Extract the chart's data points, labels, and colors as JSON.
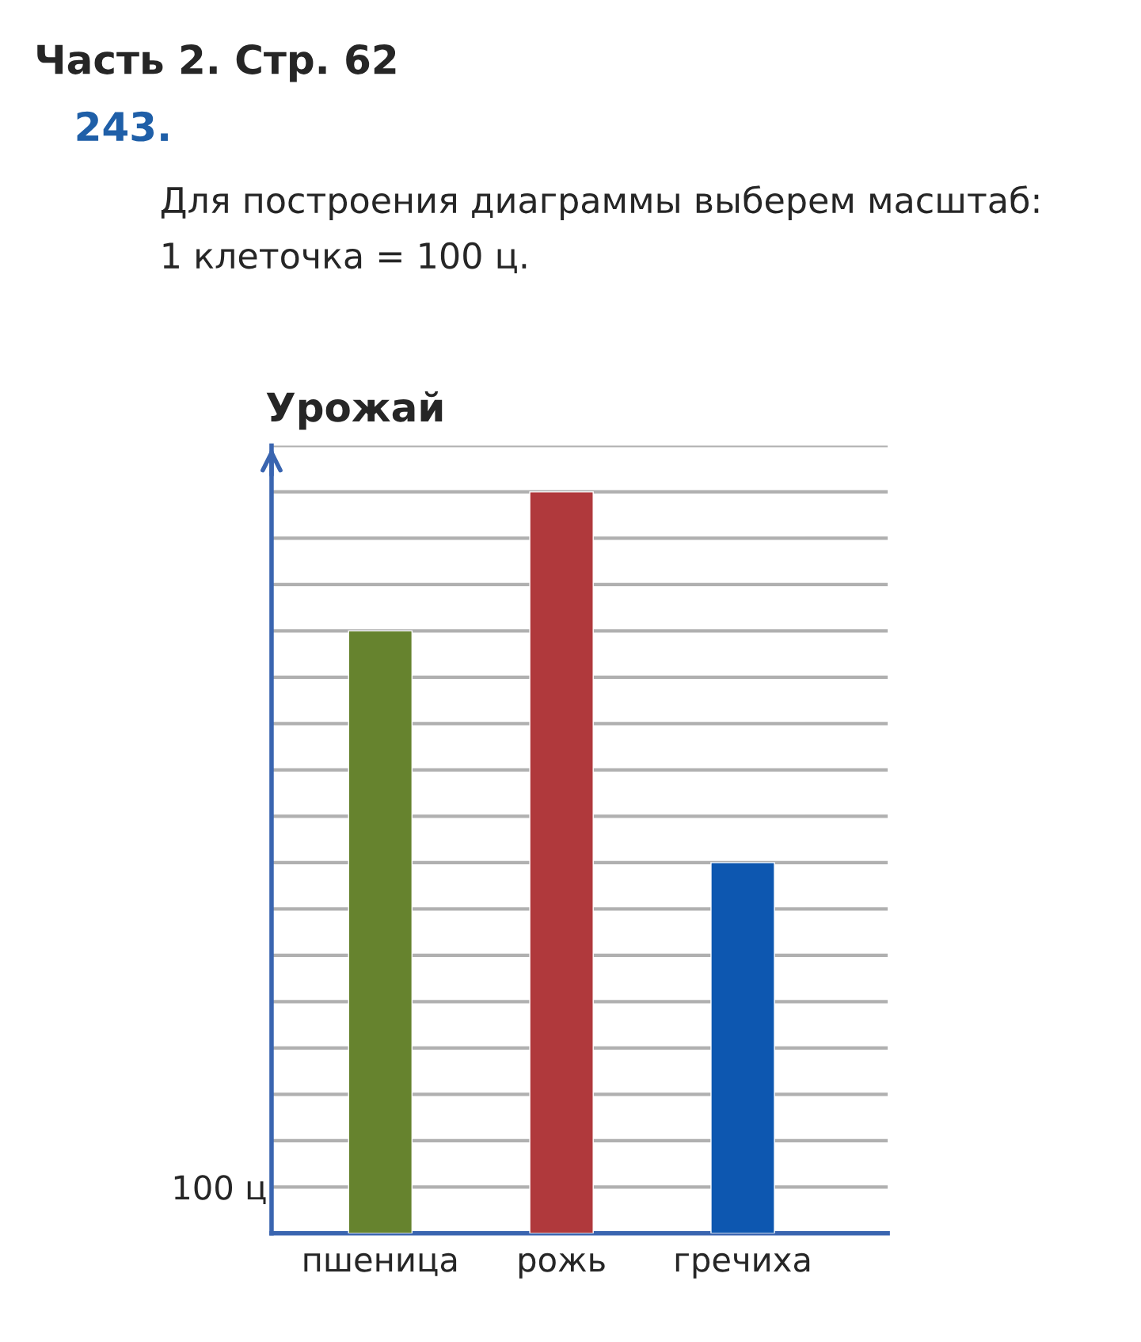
{
  "chart_data": {
    "type": "bar",
    "title": "Часть 2. Стр. 62",
    "subtitle": "243.",
    "annotations": [
      "Для построения диаграммы выберем масштаб:\n1 клеточка = 100 ц."
    ],
    "ylabel": "Урожай",
    "categories": [
      "пшеница",
      "рожь",
      "гречиха"
    ],
    "values": [
      1300,
      1600,
      800
    ],
    "colors": [
      "#66832e",
      "#b0393c",
      "#0d57b0"
    ],
    "ylim": [
      0,
      1700
    ],
    "yticks": [
      {
        "value": 100,
        "label": "100 ц"
      },
      {
        "value": 200,
        "label": null
      },
      {
        "value": 300,
        "label": null
      },
      {
        "value": 400,
        "label": null
      },
      {
        "value": 500,
        "label": null
      },
      {
        "value": 600,
        "label": null
      },
      {
        "value": 700,
        "label": null
      },
      {
        "value": 800,
        "label": null
      },
      {
        "value": 900,
        "label": null
      },
      {
        "value": 1000,
        "label": null
      },
      {
        "value": 1100,
        "label": null
      },
      {
        "value": 1200,
        "label": null
      },
      {
        "value": 1300,
        "label": null
      },
      {
        "value": 1400,
        "label": null
      },
      {
        "value": 1500,
        "label": null
      },
      {
        "value": 1600,
        "label": null
      },
      {
        "value": 1700,
        "label": null
      }
    ],
    "grid": "y"
  }
}
